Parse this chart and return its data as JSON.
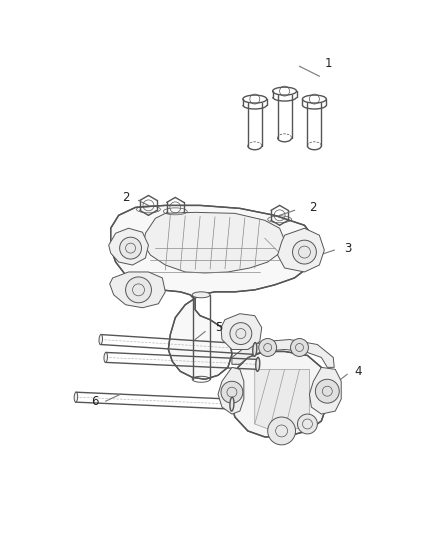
{
  "background_color": "#ffffff",
  "fig_width": 4.38,
  "fig_height": 5.33,
  "dpi": 100,
  "line_color": "#555555",
  "label_color": "#222222",
  "leader_color": "#777777",
  "label_fontsize": 8.5
}
